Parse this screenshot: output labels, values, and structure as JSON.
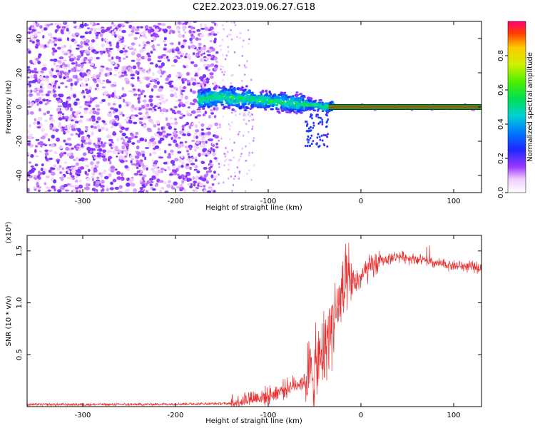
{
  "title": "C2E2.2023.019.06.27.G18",
  "chart_data": [
    {
      "type": "heatmap",
      "xlabel": "Height of straight line (km)",
      "ylabel": "Frequency (Hz)",
      "xlim": [
        -360,
        130
      ],
      "ylim": [
        -50,
        50
      ],
      "xticks": [
        -300,
        -200,
        -100,
        0,
        100
      ],
      "yticks": [
        -40,
        -20,
        0,
        20,
        40
      ],
      "colorbar": {
        "label": "Normalized spectral amplitude",
        "range": [
          0,
          1
        ],
        "ticks": [
          "0.0",
          "0.2",
          "0.4",
          "0.6",
          "0.8"
        ]
      },
      "tone_frequency": 0,
      "tone_start_height": -35,
      "scatter_band_end_height": -150,
      "band_centers": [
        [
          -170,
          5
        ],
        [
          -150,
          6
        ],
        [
          -130,
          5
        ],
        [
          -110,
          4
        ],
        [
          -90,
          3
        ],
        [
          -70,
          2
        ],
        [
          -50,
          1
        ],
        [
          -35,
          0
        ],
        [
          -20,
          1
        ],
        [
          0,
          0
        ],
        [
          130,
          0
        ]
      ],
      "noise_floor_end_height": -155
    },
    {
      "type": "line",
      "series": [
        {
          "color": "#e83030"
        }
      ],
      "xlabel": "Height of straight line (km)",
      "ylabel": "SNR (10 * v/v)",
      "multiplier_label": "(x10⁴)",
      "xlim": [
        -360,
        130
      ],
      "ylim": [
        0,
        1.65
      ],
      "xticks": [
        -300,
        -200,
        -100,
        0,
        100
      ],
      "yticks": [
        "0.5",
        "1.0",
        "1.5"
      ],
      "profile": [
        [
          -360,
          0.02
        ],
        [
          -250,
          0.02
        ],
        [
          -140,
          0.03
        ],
        [
          -120,
          0.08
        ],
        [
          -100,
          0.1
        ],
        [
          -80,
          0.18
        ],
        [
          -60,
          0.25
        ],
        [
          -45,
          0.4
        ],
        [
          -35,
          0.7
        ],
        [
          -25,
          0.95
        ],
        [
          -15,
          1.15
        ],
        [
          -5,
          1.2
        ],
        [
          5,
          1.3
        ],
        [
          20,
          1.4
        ],
        [
          40,
          1.45
        ],
        [
          60,
          1.42
        ],
        [
          80,
          1.38
        ],
        [
          100,
          1.36
        ],
        [
          130,
          1.34
        ]
      ]
    }
  ]
}
